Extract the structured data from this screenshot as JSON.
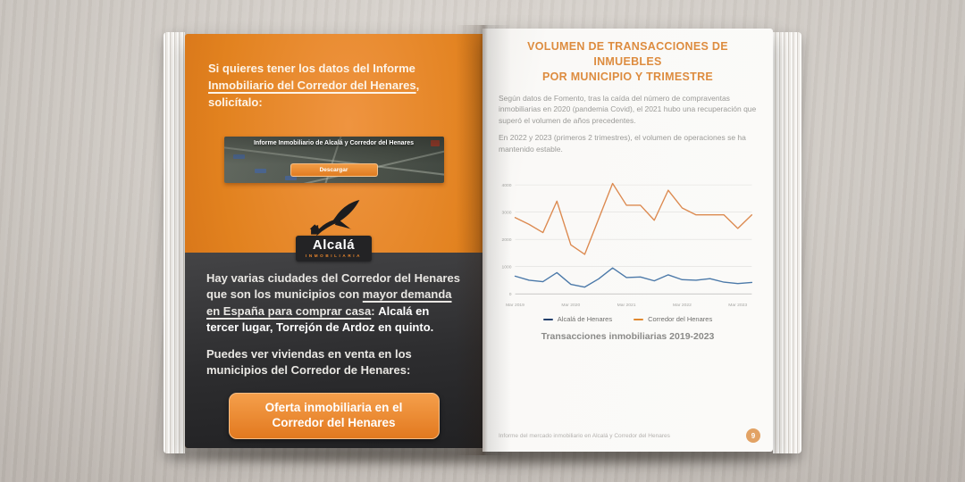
{
  "colors": {
    "page_orange": "#e2821f",
    "dark_panel": "#2d2d2f",
    "accent_orange": "#e2791f",
    "title_orange": "#dd8c3f",
    "body_gray": "#9b9b98"
  },
  "left_page": {
    "intro": {
      "line1": "Si quieres tener los datos del Informe",
      "line2_underlined": "Inmobiliario del Corredor del Henares",
      "line2_rest": ", solicítalo:"
    },
    "banner": {
      "title": "Informe Inmobiliario de Alcalá y Corredor del Henares",
      "download_label": "Descargar"
    },
    "logo": {
      "name": "Alcalá",
      "subtitle": "INMOBILIARIA"
    },
    "paragraph1": {
      "seg_normal": "Hay varias ciudades del Corredor del Henares que son los municipios con ",
      "seg_underlined": "mayor demanda en España para comprar casa",
      "seg_separator": ": ",
      "seg_bold": "Alcalá en tercer lugar, Torrejón de Ardoz en quinto."
    },
    "paragraph2": "Puedes ver viviendas en venta en los municipios del Corredor de Henares:",
    "cta": {
      "line1": "Oferta inmobiliaria en el",
      "line2": "Corredor del Henares"
    }
  },
  "right_page": {
    "title_line1": "VOLUMEN DE TRANSACCIONES DE INMUEBLES",
    "title_line2": "POR MUNICIPIO Y TRIMESTRE",
    "paragraph1": "Según datos de Fomento, tras la caída del número de compraventas inmobiliarias en 2020 (pandemia Covid), el 2021 hubo una recuperación que superó el volumen de años precedentes.",
    "paragraph2": "En 2022 y 2023 (primeros 2 trimestres), el volumen de operaciones se ha mantenido estable.",
    "footer_text": "Informe del mercado inmobiliario en Alcalá y Corredor del Henares",
    "page_number": "9"
  },
  "chart_data": {
    "type": "line",
    "title": "Transacciones inmobiliarias 2019-2023",
    "x": [
      "2019-T1",
      "2019-T2",
      "2019-T3",
      "2019-T4",
      "2020-T1",
      "2020-T2",
      "2020-T3",
      "2020-T4",
      "2021-T1",
      "2021-T2",
      "2021-T3",
      "2021-T4",
      "2022-T1",
      "2022-T2",
      "2022-T3",
      "2022-T4",
      "2023-T1",
      "2023-T2"
    ],
    "x_tick_labels": [
      "Mar 2019",
      "Mar 2020",
      "Mar 2021",
      "Mar 2022",
      "Mar 2023"
    ],
    "x_tick_indices": [
      0,
      4,
      8,
      12,
      16
    ],
    "y_ticks": [
      0,
      1000,
      2000,
      3000,
      4000
    ],
    "ylim": [
      0,
      4400
    ],
    "grid": true,
    "legend_position": "bottom",
    "series": [
      {
        "name": "Alcalá de Henares",
        "legend_color": "#24406c",
        "line_color": "#4b79a9",
        "values": [
          650,
          500,
          450,
          780,
          350,
          250,
          550,
          950,
          600,
          620,
          480,
          700,
          520,
          500,
          560,
          430,
          380,
          420
        ]
      },
      {
        "name": "Corredor del Henares",
        "legend_color": "#e0882f",
        "line_color": "#dc8a50",
        "values": [
          2800,
          2550,
          2250,
          3400,
          1800,
          1450,
          2750,
          4050,
          3250,
          3250,
          2700,
          3800,
          3150,
          2900,
          2900,
          2900,
          2400,
          2900
        ]
      }
    ]
  }
}
